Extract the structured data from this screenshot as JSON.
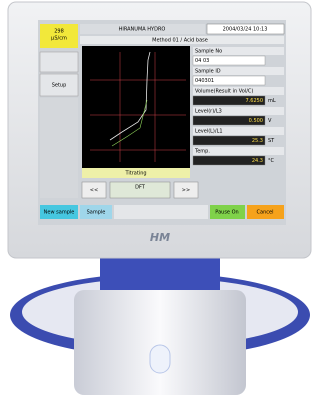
{
  "screen": {
    "status_value": "298",
    "status_unit": "µS/cm",
    "header_title": "HIRANUMA HYDRO",
    "datetime": "2004/03/24 10:13",
    "method": "Method 01 / Acid base",
    "side_menu": [
      "Setup"
    ],
    "fields": [
      {
        "label": "Sample No",
        "value": "04 03"
      },
      {
        "label": "Sample ID",
        "value": "040301"
      },
      {
        "label": "Volume(Result in Vol/C)",
        "value": "7.6250",
        "unit": "mL"
      },
      {
        "label": "Level(r)/L3",
        "value": "0.500",
        "unit": "V"
      },
      {
        "label": "Level(L)/L1",
        "value": "25.3",
        "unit": "ST"
      },
      {
        "label": "Temp.",
        "value": "24.3",
        "unit": "°C"
      }
    ],
    "state": "Titrating",
    "nav": {
      "prev": "<<",
      "mode": "DFT",
      "next": ">>"
    },
    "buttons": [
      "New sample",
      "Sample",
      "Pause On",
      "Cancel"
    ],
    "logo": "HM"
  }
}
